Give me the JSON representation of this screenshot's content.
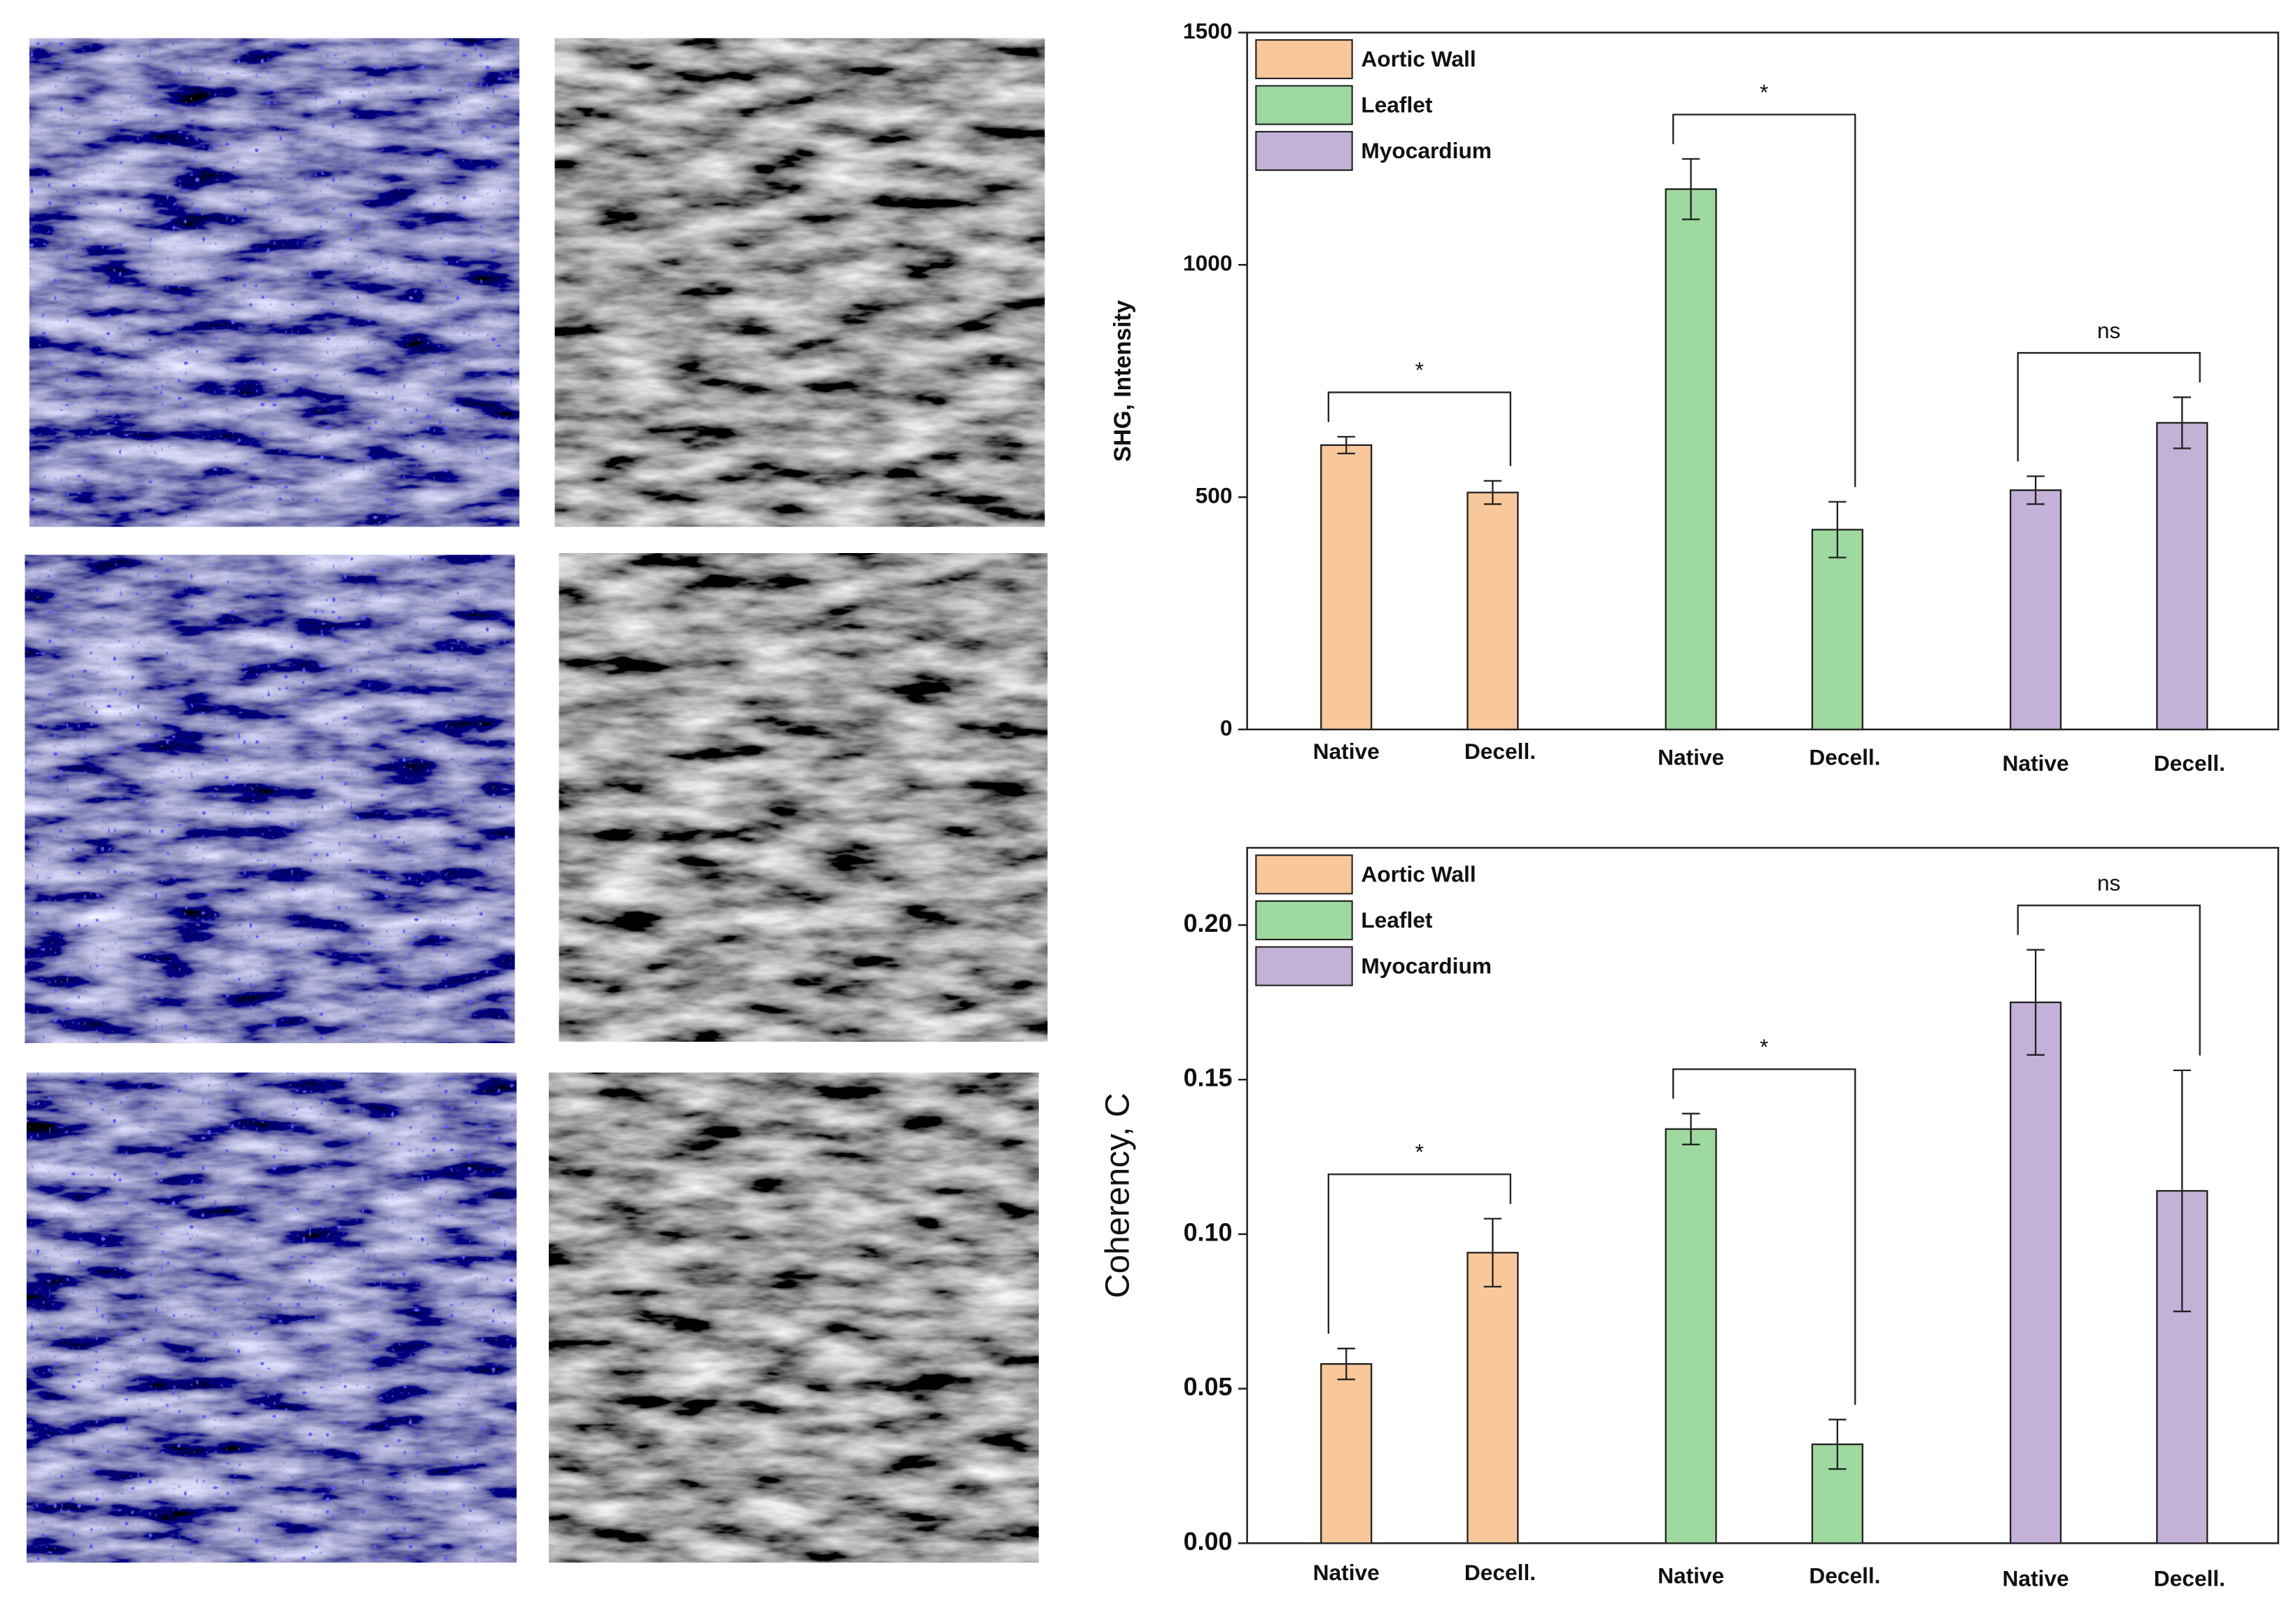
{
  "chart_data": [
    {
      "type": "bar",
      "ylabel": "SHG, Intensity",
      "categories": [
        "Native",
        "Decell."
      ],
      "series": [
        {
          "name": "Aortic Wall",
          "color": "#f9c89a",
          "values": [
            612,
            510
          ],
          "errors": [
            18,
            25
          ]
        },
        {
          "name": "Leaflet",
          "color": "#9ed9a0",
          "values": [
            1163,
            430
          ],
          "errors": [
            65,
            60
          ]
        },
        {
          "name": "Myocardium",
          "color": "#c4b1d8",
          "values": [
            515,
            660
          ],
          "errors": [
            30,
            55
          ]
        }
      ],
      "annotations": [
        "*",
        "*",
        "ns"
      ],
      "ylim": [
        0,
        1500
      ],
      "yticks": [
        0,
        500,
        1000,
        1500
      ],
      "legend": "upper left"
    },
    {
      "type": "bar",
      "ylabel": "Coherency, C",
      "categories": [
        "Native",
        "Decell."
      ],
      "series": [
        {
          "name": "Aortic Wall",
          "color": "#f9c89a",
          "values": [
            0.058,
            0.094
          ],
          "errors": [
            0.005,
            0.011
          ]
        },
        {
          "name": "Leaflet",
          "color": "#9ed9a0",
          "values": [
            0.134,
            0.032
          ],
          "errors": [
            0.005,
            0.008
          ]
        },
        {
          "name": "Myocardium",
          "color": "#c4b1d8",
          "values": [
            0.175,
            0.114
          ],
          "errors": [
            0.017,
            0.039
          ]
        }
      ],
      "annotations": [
        "*",
        "*",
        "ns"
      ],
      "ylim": [
        0,
        0.225
      ],
      "yticks": [
        {
          "value": 0,
          "label": "0.00"
        },
        {
          "value": 0.05,
          "label": "0.05"
        },
        {
          "value": 0.1,
          "label": "0.10"
        },
        {
          "value": 0.15,
          "label": "0.15"
        },
        {
          "value": 0.2,
          "label": "0.20"
        }
      ],
      "legend": "upper left"
    }
  ]
}
